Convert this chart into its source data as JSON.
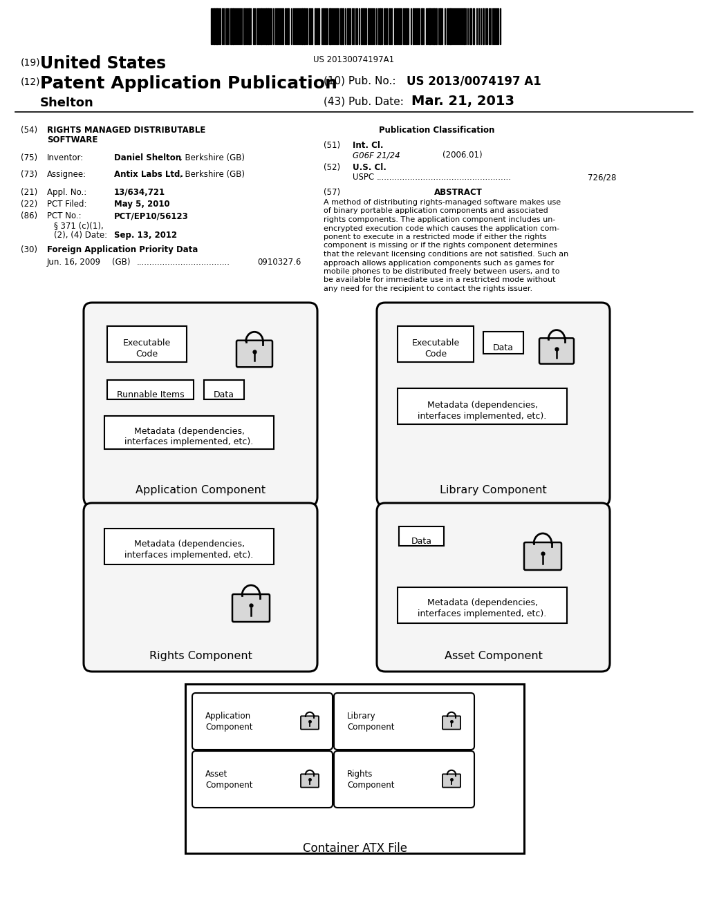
{
  "title_19": "(19) United States",
  "title_12": "(12) Patent Application Publication",
  "pub_no_label": "(10) Pub. No.:",
  "pub_no_value": "US 2013/0074197 A1",
  "pub_date_label": "(43) Pub. Date:",
  "pub_date_value": "Mar. 21, 2013",
  "inventor_name": "Shelton",
  "field54_label": "(54)",
  "field54_text1": "RIGHTS MANAGED DISTRIBUTABLE",
  "field54_text2": "SOFTWARE",
  "field75_label": "(75)",
  "field75_value_bold": "Daniel Shelton",
  "field75_value_normal": ", Berkshire (GB)",
  "field73_label": "(73)",
  "field73_value_bold": "Antix Labs Ltd.",
  "field73_value_normal": ", Berkshire (GB)",
  "field21_label": "(21)",
  "field21_value": "13/634,721",
  "field22_label": "(22)",
  "field22_value": "May 5, 2010",
  "field86_label": "(86)",
  "field86_value": "PCT/EP10/56123",
  "field86b_text1": "§ 371 (c)(1),",
  "field86b_text2": "(2), (4) Date:",
  "field86b_value": "Sep. 13, 2012",
  "field30_label": "(30)",
  "field30_text": "Foreign Application Priority Data",
  "field30_date": "Jun. 16, 2009",
  "field30_country": "(GB)",
  "field30_dots": "....................................",
  "field30_num": "0910327.6",
  "pub_class_title": "Publication Classification",
  "field51_label": "(51)",
  "field51_class": "G06F 21/24",
  "field51_year": "(2006.01)",
  "field52_label": "(52)",
  "field52_dots": "....................................................",
  "field52_value": "726/28",
  "field57_label": "(57)",
  "field57_title": "ABSTRACT",
  "abstract_lines": [
    "A method of distributing rights-managed software makes use",
    "of binary portable application components and associated",
    "rights components. The application component includes un-",
    "encrypted execution code which causes the application com-",
    "ponent to execute in a restricted mode if either the rights",
    "component is missing or if the rights component determines",
    "that the relevant licensing conditions are not satisfied. Such an",
    "approach allows application components such as games for",
    "mobile phones to be distributed freely between users, and to",
    "be available for immediate use in a restricted mode without",
    "any need for the recipient to contact the rights issuer."
  ],
  "barcode_text": "US 20130074197A1",
  "bg_color": "#ffffff",
  "text_color": "#000000"
}
